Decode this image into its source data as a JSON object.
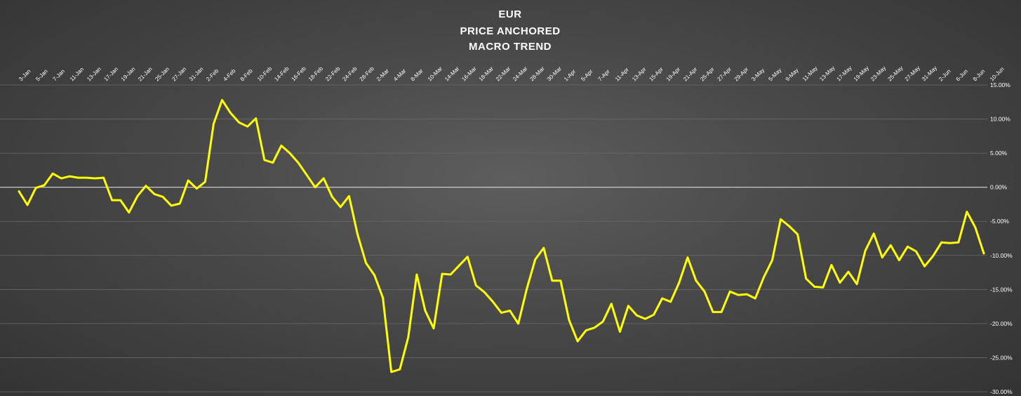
{
  "chart_data": {
    "type": "line",
    "title": [
      "EUR",
      "PRICE ANCHORED",
      "MACRO TREND"
    ],
    "xlabel": "",
    "ylabel": "",
    "ylim": [
      -30,
      15
    ],
    "y_ticks": [
      "15.00%",
      "10.00%",
      "5.00%",
      "0.00%",
      "-5.00%",
      "-10.00%",
      "-15.00%",
      "-20.00%",
      "-25.00%",
      "-30.00%"
    ],
    "x_ticks": [
      "3-Jan",
      "5-Jan",
      "7-Jan",
      "11-Jan",
      "13-Jan",
      "17-Jan",
      "19-Jan",
      "21-Jan",
      "25-Jan",
      "27-Jan",
      "31-Jan",
      "2-Feb",
      "4-Feb",
      "8-Feb",
      "10-Feb",
      "14-Feb",
      "16-Feb",
      "18-Feb",
      "22-Feb",
      "24-Feb",
      "28-Feb",
      "2-Mar",
      "4-Mar",
      "8-Mar",
      "10-Mar",
      "14-Mar",
      "16-Mar",
      "18-Mar",
      "22-Mar",
      "24-Mar",
      "28-Mar",
      "30-Mar",
      "1-Apr",
      "5-Apr",
      "7-Apr",
      "11-Apr",
      "13-Apr",
      "15-Apr",
      "19-Apr",
      "21-Apr",
      "25-Apr",
      "27-Apr",
      "29-Apr",
      "3-May",
      "5-May",
      "9-May",
      "11-May",
      "13-May",
      "17-May",
      "19-May",
      "23-May",
      "25-May",
      "27-May",
      "31-May",
      "2-Jun",
      "6-Jun",
      "8-Jun",
      "10-Jun"
    ],
    "grid": true,
    "zero_line": true,
    "legend": "none",
    "colors": {
      "line": "#ffff00",
      "grid": "#6a6a6a",
      "zero_line": "#d9d9d9",
      "text": "#ffffff"
    },
    "series": [
      {
        "values": [
          -0.6,
          -2.6,
          -0.1,
          0.3,
          2.0,
          1.3,
          1.6,
          1.4,
          1.4,
          1.3,
          1.4,
          -1.9,
          -1.9,
          -3.7,
          -1.3,
          0.2,
          -1.0,
          -1.4,
          -2.7,
          -2.4,
          1.0,
          -0.2,
          0.8,
          9.3,
          12.8,
          10.9,
          9.5,
          8.9,
          10.1,
          4.0,
          3.6,
          6.1,
          5.0,
          3.6,
          1.8,
          0.0,
          1.3,
          -1.4,
          -2.9,
          -1.3,
          -6.9,
          -11.1,
          -12.9,
          -16.2,
          -27.1,
          -26.7,
          -22.0,
          -12.8,
          -18.1,
          -20.7,
          -12.7,
          -12.8,
          -11.5,
          -10.2,
          -14.4,
          -15.4,
          -16.8,
          -18.4,
          -18.1,
          -20.0,
          -14.9,
          -10.6,
          -8.9,
          -13.7,
          -13.7,
          -19.5,
          -22.6,
          -21.0,
          -20.6,
          -19.7,
          -17.1,
          -21.2,
          -17.4,
          -18.8,
          -19.3,
          -18.7,
          -16.3,
          -16.8,
          -14.0,
          -10.3,
          -13.7,
          -15.3,
          -18.3,
          -18.3,
          -15.3,
          -15.8,
          -15.7,
          -16.3,
          -13.2,
          -10.7,
          -4.7,
          -5.7,
          -6.9,
          -13.4,
          -14.6,
          -14.7,
          -11.4,
          -14.0,
          -12.4,
          -14.2,
          -9.3,
          -6.8,
          -10.3,
          -8.5,
          -10.7,
          -8.7,
          -9.4,
          -11.6,
          -10.1,
          -8.1,
          -8.2,
          -8.1,
          -3.6,
          -5.9,
          -9.7
        ]
      }
    ]
  }
}
